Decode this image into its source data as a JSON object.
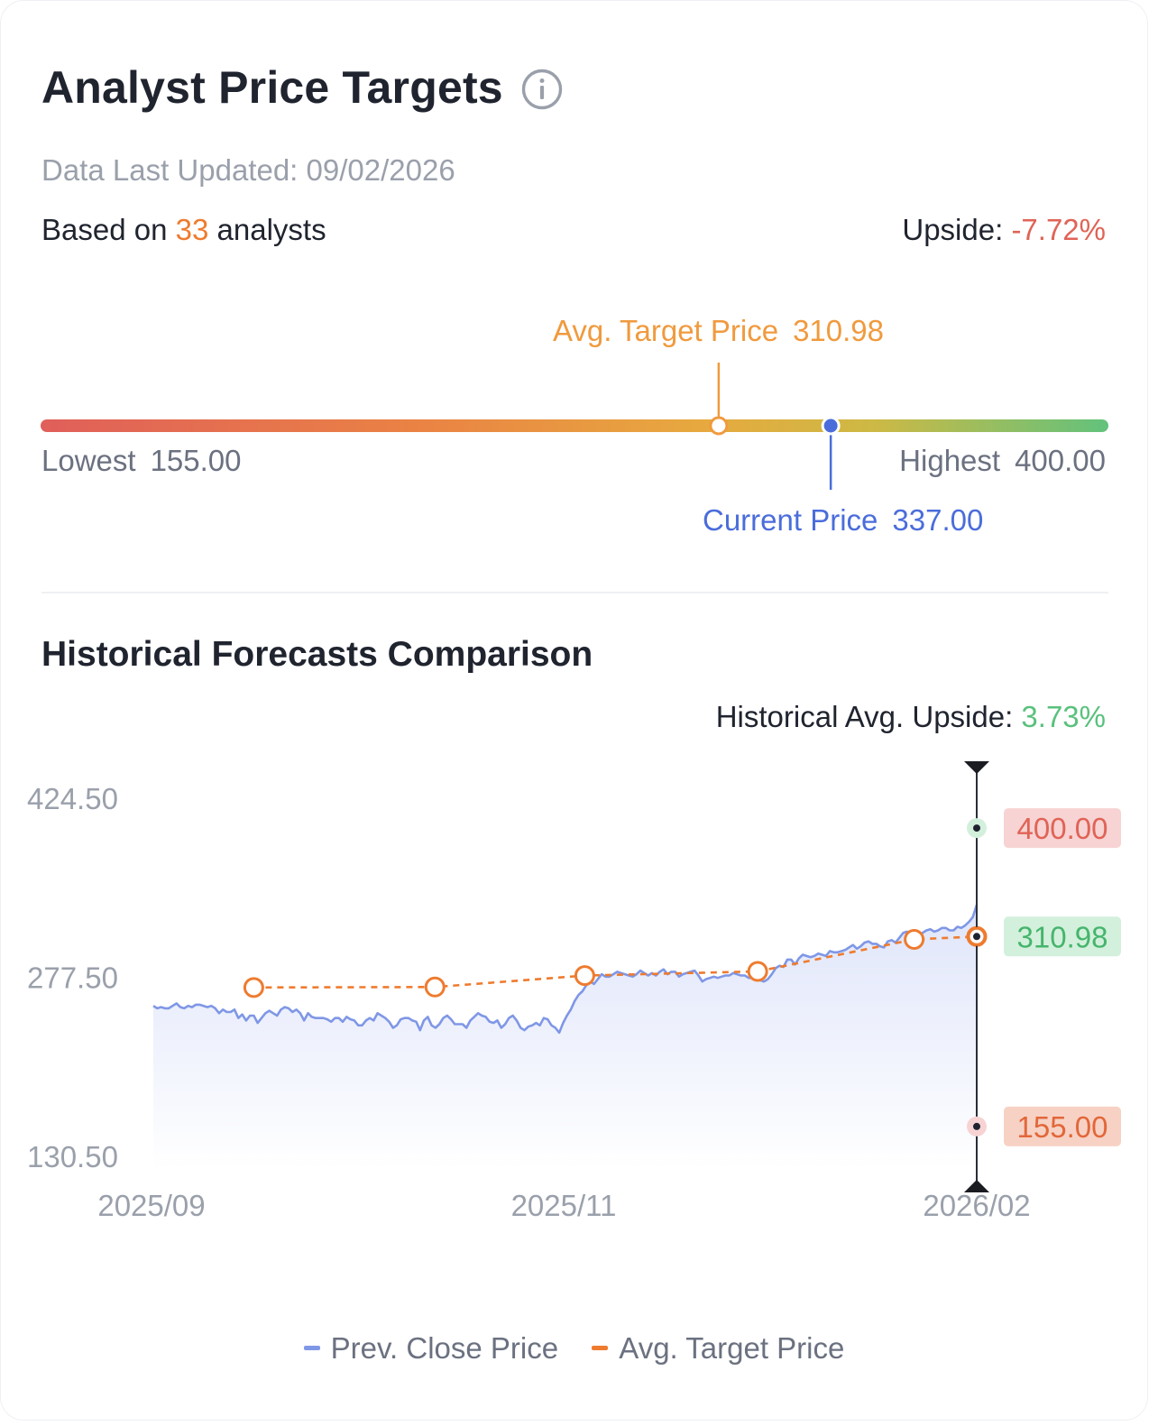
{
  "header": {
    "title": "Analyst Price Targets",
    "updated": "Data Last Updated: 09/02/2026",
    "based_prefix": "Based on ",
    "analyst_count": "33",
    "based_suffix": " analysts",
    "upside_label": "Upside: ",
    "upside_value": "-7.72%"
  },
  "range": {
    "avg_label": "Avg. Target Price",
    "avg_value": "310.98",
    "current_label": "Current Price",
    "current_value": "337.00",
    "low_label": "Lowest",
    "low_value": "155.00",
    "high_label": "Highest",
    "high_value": "400.00",
    "low": 155.0,
    "high": 400.0,
    "avg": 310.98,
    "current": 337.0
  },
  "history": {
    "subtitle": "Historical Forecasts Comparison",
    "upside_label": "Historical Avg. Upside: ",
    "upside_value": "3.73%"
  },
  "colors": {
    "price_line": "#7f97e6",
    "target_line": "#ee7b2f",
    "current": "#4a6ddb",
    "low_tag_bg": "#f7d2c4",
    "low_tag_text": "#e2673a",
    "high_tag_bg": "#f7d3d3",
    "high_tag_text": "#e06356",
    "avg_tag_bg": "#d3f0dc",
    "avg_tag_text": "#45b56c"
  },
  "chart_data": {
    "type": "line",
    "ylim": [
      130.5,
      424.5
    ],
    "y_ticks": [
      "424.50",
      "277.50",
      "130.50"
    ],
    "x_ticks": [
      "2025/09",
      "2025/11",
      "2026/02"
    ],
    "series": [
      {
        "name": "Prev. Close Price",
        "values": [
          254,
          252,
          253,
          252,
          252,
          254,
          256,
          253,
          252,
          254,
          253,
          255,
          255,
          254,
          253,
          254,
          252,
          248,
          251,
          249,
          249,
          251,
          244,
          247,
          242,
          246,
          246,
          240,
          244,
          248,
          250,
          248,
          246,
          251,
          253,
          252,
          249,
          251,
          248,
          242,
          248,
          245,
          244,
          244,
          244,
          243,
          241,
          244,
          244,
          241,
          245,
          243,
          242,
          238,
          238,
          242,
          244,
          242,
          248,
          246,
          244,
          241,
          236,
          238,
          243,
          244,
          244,
          242,
          241,
          234,
          242,
          245,
          238,
          236,
          239,
          244,
          246,
          243,
          239,
          239,
          239,
          236,
          242,
          245,
          248,
          246,
          245,
          241,
          240,
          242,
          236,
          239,
          244,
          246,
          242,
          236,
          234,
          237,
          238,
          240,
          238,
          244,
          243,
          238,
          236,
          232,
          240,
          246,
          251,
          258,
          263,
          266,
          271,
          274,
          272,
          276,
          280,
          278,
          278,
          280,
          282,
          281,
          280,
          279,
          278,
          280,
          283,
          281,
          279,
          281,
          279,
          282,
          284,
          280,
          282,
          282,
          278,
          280,
          281,
          282,
          283,
          279,
          274,
          276,
          277,
          278,
          277,
          278,
          279,
          279,
          281,
          280,
          279,
          279,
          277,
          277,
          276,
          275,
          274,
          276,
          280,
          285,
          287,
          286,
          292,
          292,
          288,
          293,
          296,
          295,
          294,
          295,
          297,
          296,
          295,
          299,
          298,
          298,
          299,
          300,
          302,
          304,
          301,
          303,
          306,
          307,
          305,
          305,
          303,
          302,
          307,
          308,
          306,
          310,
          314,
          315,
          311,
          313,
          311,
          314,
          316,
          317,
          315,
          316,
          318,
          318,
          316,
          316,
          319,
          318,
          320,
          323,
          327,
          337
        ]
      },
      {
        "name": "Avg. Target Price",
        "points": [
          {
            "x": 0.122,
            "y": 269.1
          },
          {
            "x": 0.342,
            "y": 269.5
          },
          {
            "x": 0.524,
            "y": 278.9
          },
          {
            "x": 0.734,
            "y": 282.3
          },
          {
            "x": 0.924,
            "y": 308.6
          },
          {
            "x": 1.0,
            "y": 310.98
          }
        ]
      }
    ],
    "end_tags": {
      "high": "400.00",
      "avg": "310.98",
      "low": "155.00"
    }
  },
  "legend": {
    "price_label": "Prev. Close Price",
    "target_label": "Avg. Target Price"
  }
}
